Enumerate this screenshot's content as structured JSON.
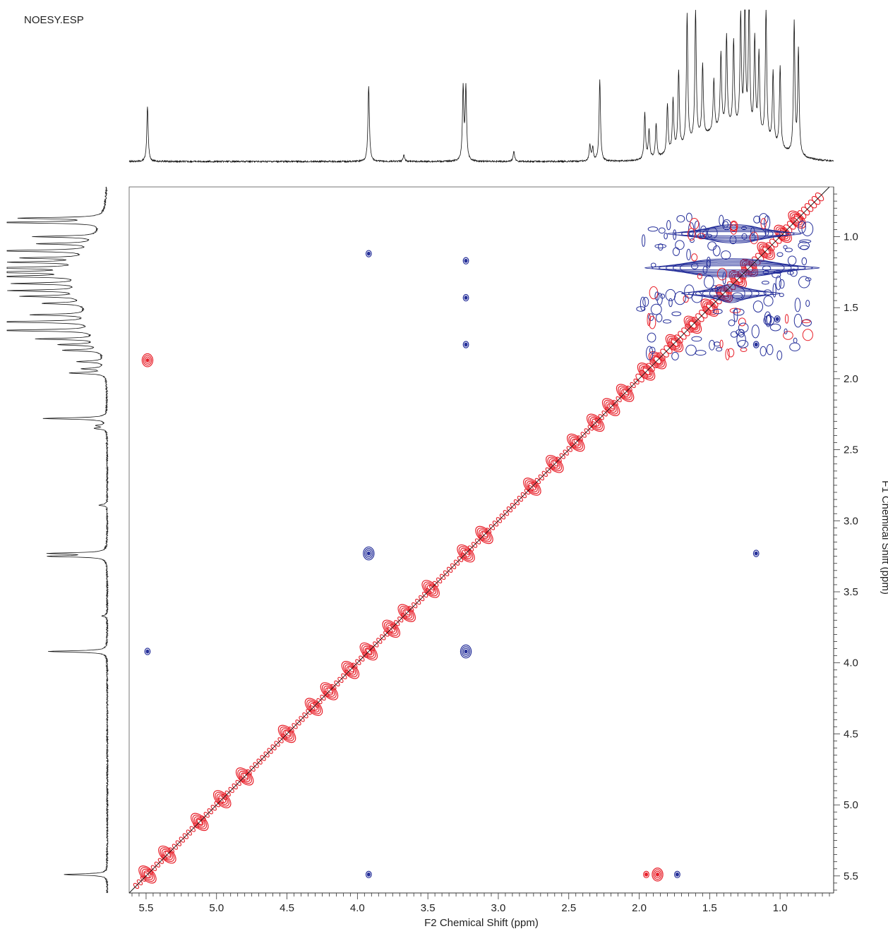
{
  "title": "NOESY.ESP",
  "chart_data": {
    "type": "contour-2d",
    "x_axis": {
      "label": "F2 Chemical Shift (ppm)",
      "range": [
        5.62,
        0.62
      ],
      "reversed": true,
      "ticks": [
        5.5,
        5.0,
        4.5,
        4.0,
        3.5,
        3.0,
        2.5,
        2.0,
        1.5,
        1.0
      ],
      "tick_labels": [
        "5.5",
        "5.0",
        "4.5",
        "4.0",
        "3.5",
        "3.0",
        "2.5",
        "2.0",
        "1.5",
        "1.0"
      ]
    },
    "y_axis": {
      "label": "F1 Chemical Shift (ppm)",
      "range": [
        0.65,
        5.62
      ],
      "position": "right",
      "ticks": [
        1.0,
        1.5,
        2.0,
        2.5,
        3.0,
        3.5,
        4.0,
        4.5,
        5.0,
        5.5
      ],
      "tick_labels": [
        "1.0",
        "1.5",
        "2.0",
        "2.5",
        "3.0",
        "3.5",
        "4.0",
        "4.5",
        "5.0",
        "5.5"
      ]
    },
    "colors": {
      "positive": "#e8202a",
      "negative": "#26309a",
      "trace": "#111111"
    },
    "diagonal_peaks": [
      5.49,
      5.35,
      5.12,
      4.96,
      4.8,
      4.5,
      4.31,
      4.2,
      4.05,
      3.92,
      3.76,
      3.65,
      3.48,
      3.23,
      3.1,
      2.76,
      2.6,
      2.45,
      2.31,
      2.2,
      2.1,
      1.95,
      1.87,
      1.75,
      1.62,
      1.5,
      1.4,
      1.3,
      1.22,
      1.1,
      0.98,
      0.88
    ],
    "cross_peaks": [
      {
        "f2": 5.49,
        "f1": 1.87,
        "sign": "positive",
        "size": 2
      },
      {
        "f2": 1.87,
        "f1": 5.49,
        "sign": "positive",
        "size": 2
      },
      {
        "f2": 1.95,
        "f1": 5.49,
        "sign": "positive",
        "size": 1
      },
      {
        "f2": 1.73,
        "f1": 5.49,
        "sign": "negative",
        "size": 1
      },
      {
        "f2": 5.49,
        "f1": 3.92,
        "sign": "negative",
        "size": 1
      },
      {
        "f2": 3.92,
        "f1": 3.23,
        "sign": "negative",
        "size": 2
      },
      {
        "f2": 3.23,
        "f1": 3.92,
        "sign": "negative",
        "size": 2
      },
      {
        "f2": 1.17,
        "f1": 3.23,
        "sign": "negative",
        "size": 1
      },
      {
        "f2": 3.92,
        "f1": 1.12,
        "sign": "negative",
        "size": 1
      },
      {
        "f2": 3.23,
        "f1": 1.17,
        "sign": "negative",
        "size": 1
      },
      {
        "f2": 3.23,
        "f1": 1.76,
        "sign": "negative",
        "size": 1
      },
      {
        "f2": 3.23,
        "f1": 1.43,
        "sign": "negative",
        "size": 1
      },
      {
        "f2": 3.92,
        "f1": 5.49,
        "sign": "negative",
        "size": 1
      },
      {
        "f2": 1.17,
        "f1": 1.76,
        "sign": "negative",
        "size": 1
      },
      {
        "f2": 1.02,
        "f1": 1.58,
        "sign": "negative",
        "size": 1
      }
    ],
    "horizontal_bands": [
      {
        "f1": 1.22,
        "f2_from": 1.96,
        "f2_to": 0.72,
        "sign": "negative"
      },
      {
        "f1": 0.98,
        "f2_from": 1.8,
        "f2_to": 0.85,
        "sign": "negative"
      },
      {
        "f1": 1.4,
        "f2_from": 1.7,
        "f2_to": 1.0,
        "sign": "negative"
      }
    ],
    "projection_peaks": [
      {
        "shift": 5.49,
        "height": 0.42
      },
      {
        "shift": 3.92,
        "height": 0.58
      },
      {
        "shift": 3.67,
        "height": 0.05
      },
      {
        "shift": 3.25,
        "height": 0.55
      },
      {
        "shift": 3.23,
        "height": 0.55
      },
      {
        "shift": 2.89,
        "height": 0.08
      },
      {
        "shift": 2.35,
        "height": 0.12
      },
      {
        "shift": 2.33,
        "height": 0.1
      },
      {
        "shift": 2.28,
        "height": 0.62
      },
      {
        "shift": 1.96,
        "height": 0.35
      },
      {
        "shift": 1.93,
        "height": 0.22
      },
      {
        "shift": 1.88,
        "height": 0.26
      },
      {
        "shift": 1.8,
        "height": 0.38
      },
      {
        "shift": 1.76,
        "height": 0.4
      },
      {
        "shift": 1.72,
        "height": 0.6
      },
      {
        "shift": 1.66,
        "height": 1.0
      },
      {
        "shift": 1.6,
        "height": 1.0
      },
      {
        "shift": 1.55,
        "height": 0.55
      },
      {
        "shift": 1.47,
        "height": 0.4
      },
      {
        "shift": 1.42,
        "height": 0.58
      },
      {
        "shift": 1.38,
        "height": 0.7
      },
      {
        "shift": 1.33,
        "height": 0.66
      },
      {
        "shift": 1.28,
        "height": 0.85
      },
      {
        "shift": 1.25,
        "height": 1.0
      },
      {
        "shift": 1.22,
        "height": 1.0
      },
      {
        "shift": 1.18,
        "height": 0.72
      },
      {
        "shift": 1.15,
        "height": 0.62
      },
      {
        "shift": 1.1,
        "height": 1.0
      },
      {
        "shift": 1.05,
        "height": 0.55
      },
      {
        "shift": 1.0,
        "height": 0.62
      },
      {
        "shift": 0.9,
        "height": 1.0
      },
      {
        "shift": 0.87,
        "height": 0.8
      }
    ]
  }
}
